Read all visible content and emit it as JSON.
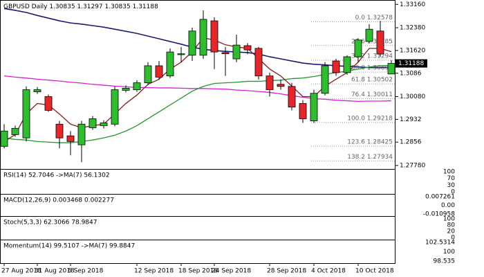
{
  "chart_data": {
    "type": "candlestick",
    "title": "GBPUSD Daily",
    "categories": [
      "27 Aug 2018",
      null,
      null,
      "31 Aug 2018",
      null,
      null,
      "6 Sep 2018",
      null,
      null,
      null,
      null,
      null,
      "12 Sep 2018",
      null,
      null,
      null,
      "18 Sep 2018",
      null,
      null,
      "24 Sep 2018",
      null,
      null,
      null,
      null,
      "28 Sep 2018",
      null,
      null,
      null,
      "4 Oct 2018",
      null,
      null,
      null,
      "10 Oct 2018",
      null,
      null,
      null
    ],
    "open": [
      1.2842,
      1.2881,
      1.287,
      1.3024,
      1.3008,
      1.2916,
      1.2877,
      1.2847,
      1.2904,
      1.2911,
      1.2916,
      1.3029,
      1.3031,
      1.3054,
      1.3111,
      1.3077,
      1.3148,
      1.3146,
      1.3146,
      1.3261,
      1.3155,
      1.3134,
      1.3178,
      1.3169,
      1.3077,
      1.3049,
      1.3042,
      1.2985,
      1.2927,
      1.3019,
      1.3127,
      1.3088,
      1.3141,
      1.3192,
      1.3227,
      1.30835
    ],
    "high": [
      1.2916,
      1.2911,
      1.3042,
      1.304,
      1.3015,
      1.2927,
      1.2893,
      1.2927,
      1.2943,
      1.2929,
      1.3042,
      1.3045,
      1.3063,
      1.3123,
      1.3127,
      1.3169,
      1.3174,
      1.3238,
      1.3296,
      1.3273,
      1.3174,
      1.3215,
      1.3187,
      1.3174,
      1.3088,
      1.3065,
      1.3054,
      1.2996,
      1.3031,
      1.3123,
      1.3134,
      1.3146,
      1.3203,
      1.325,
      1.3261,
      1.31297
    ],
    "low": [
      1.2835,
      1.2874,
      1.2858,
      1.3017,
      1.2957,
      1.2835,
      1.2812,
      1.2789,
      1.2897,
      1.2902,
      1.2909,
      1.3022,
      1.3024,
      1.3047,
      1.3065,
      1.307,
      1.3123,
      1.3127,
      1.3134,
      1.31,
      1.3077,
      1.3123,
      1.315,
      1.3065,
      1.3008,
      1.3031,
      1.2962,
      1.292,
      1.292,
      1.3012,
      1.3077,
      1.3081,
      1.3123,
      1.3187,
      1.3141,
      1.30835
    ],
    "close": [
      1.2893,
      1.2902,
      1.3031,
      1.3031,
      1.2962,
      1.287,
      1.2858,
      1.2916,
      1.2934,
      1.292,
      1.3031,
      1.3036,
      1.3054,
      1.3111,
      1.3073,
      1.3157,
      1.3151,
      1.3227,
      1.3266,
      1.3157,
      1.3151,
      1.318,
      1.3164,
      1.3077,
      1.3031,
      1.3042,
      1.2973,
      1.2934,
      1.3019,
      1.3111,
      1.3088,
      1.3141,
      1.3197,
      1.3233,
      1.315,
      1.31188
    ],
    "up_color": "#2ebd2e",
    "down_color": "#e8262a",
    "lines": [
      {
        "color": "#1a1a7a",
        "values": [
          1.3302,
          1.3296,
          1.3289,
          1.3279,
          1.327,
          1.3261,
          1.3254,
          1.325,
          1.3245,
          1.324,
          1.3233,
          1.3226,
          1.3219,
          1.321,
          1.3201,
          1.3192,
          1.3183,
          1.3173,
          1.3166,
          1.3162,
          1.3159,
          1.3157,
          1.3155,
          1.315,
          1.3141,
          1.3134,
          1.3127,
          1.312,
          1.3116,
          1.3114,
          1.3111,
          1.3109,
          1.3107,
          1.3105,
          1.3105,
          1.3105
        ]
      },
      {
        "color": "#d81ed8",
        "values": [
          1.3077,
          1.3073,
          1.307,
          1.3066,
          1.3063,
          1.306,
          1.3056,
          1.3053,
          1.3049,
          1.3046,
          1.3043,
          1.3041,
          1.3038,
          1.3038,
          1.3037,
          1.3037,
          1.3036,
          1.3035,
          1.3035,
          1.3034,
          1.3033,
          1.303,
          1.3028,
          1.3025,
          1.3022,
          1.3017,
          1.3011,
          1.3006,
          1.3001,
          1.2999,
          1.2996,
          1.2994,
          1.2992,
          1.2993,
          1.2993,
          1.2994
        ]
      },
      {
        "color": "#1f9a2a",
        "values": [
          1.287,
          1.2865,
          1.2863,
          1.2858,
          1.2856,
          1.2854,
          1.2854,
          1.2858,
          1.2863,
          1.287,
          1.2879,
          1.2893,
          1.2911,
          1.2934,
          1.2957,
          1.298,
          1.3003,
          1.3026,
          1.3042,
          1.3052,
          1.3054,
          1.3056,
          1.3059,
          1.3059,
          1.3061,
          1.3063,
          1.3068,
          1.307,
          1.3075,
          1.3082,
          1.3088,
          1.3093,
          1.31,
          1.3107,
          1.3111,
          1.3111
        ]
      },
      {
        "color": "#8b1a1a",
        "values": [
          1.2858,
          1.2881,
          1.295,
          1.2985,
          1.298,
          1.295,
          1.2916,
          1.2904,
          1.2911,
          1.2916,
          1.295,
          1.2985,
          1.3013,
          1.3049,
          1.3066,
          1.31,
          1.3123,
          1.3158,
          1.3204,
          1.3197,
          1.3181,
          1.3174,
          1.3169,
          1.3135,
          1.31,
          1.3077,
          1.3043,
          1.3008,
          1.3008,
          1.3043,
          1.3066,
          1.3088,
          1.3123,
          1.3169,
          1.3169,
          1.3158
        ]
      }
    ],
    "fib_levels": [
      {
        "ratio": "0.0",
        "value": 1.32578
      },
      {
        "ratio": "23.6",
        "value": 1.31785
      },
      {
        "ratio": "38.2",
        "value": 1.31294
      },
      {
        "ratio": "50.0",
        "value": 1.30898
      },
      {
        "ratio": "61.8",
        "value": 1.30502
      },
      {
        "ratio": "76.4",
        "value": 1.30011
      },
      {
        "ratio": "100.0",
        "value": 1.29218
      },
      {
        "ratio": "123.6",
        "value": 1.28425
      },
      {
        "ratio": "138.2",
        "value": 1.27934
      }
    ],
    "ylim": [
      1.2764,
      1.3319
    ],
    "yticks": [
      {
        "value": 1.3316,
        "label": "1.33160"
      },
      {
        "value": 1.3238,
        "label": "1.32380"
      },
      {
        "value": 1.3162,
        "label": "1.31620"
      },
      1.3086,
      {
        "value": 1.3008,
        "label": "1.30080"
      },
      1.2932,
      1.2856,
      {
        "value": 1.2778,
        "label": "1.27780"
      }
    ],
    "panels": [
      {
        "label": "RSI(14) 52.7046 ->MA(7) 56.1302",
        "ticks": [
          "100",
          "70",
          "30",
          "0"
        ]
      },
      {
        "label": "MACD(12,26,9) 0.003468 0.002277",
        "ticks": [
          "0.007261",
          "0.00",
          "-0.010958"
        ]
      },
      {
        "label": "Stoch(5,3,3) 62.3066 78.9847",
        "ticks": [
          "100",
          "80",
          "20",
          "0"
        ]
      },
      {
        "label": "Momentum(14) 99.5107 ->MA(7) 99.8847",
        "ticks": [
          "102.5314",
          "100",
          "98.535"
        ]
      }
    ]
  }
}
